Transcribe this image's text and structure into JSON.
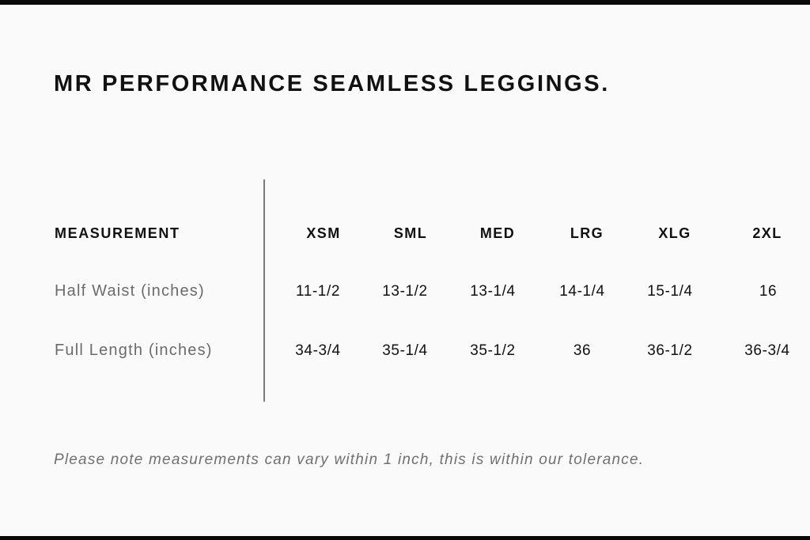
{
  "title": "MR PERFORMANCE SEAMLESS LEGGINGS.",
  "table": {
    "header_label": "MEASUREMENT",
    "sizes": [
      "XSM",
      "SML",
      "MED",
      "LRG",
      "XLG",
      "2XL"
    ],
    "rows": [
      {
        "label": "Half Waist (inches)",
        "values": [
          "11-1/2",
          "13-1/2",
          "13-1/4",
          "14-1/4",
          "15-1/4",
          "16"
        ]
      },
      {
        "label": "Full Length (inches)",
        "values": [
          "34-3/4",
          "35-1/4",
          "35-1/2",
          "36",
          "36-1/2",
          "36-3/4"
        ]
      }
    ]
  },
  "note": "Please note measurements can vary within 1 inch, this is within our tolerance."
}
